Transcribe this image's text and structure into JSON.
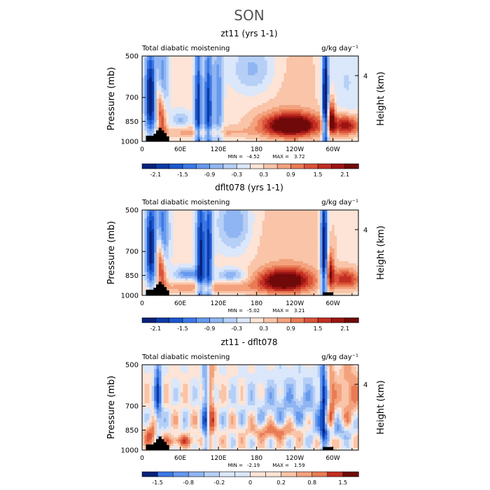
{
  "page_title": "SON",
  "chart_data": [
    {
      "type": "heatmap",
      "title": "zt11 (yrs 1-1)",
      "left_label": "Total diabatic moistening",
      "units": "g/kg day⁻¹",
      "xlabel": "",
      "ylabel": "Pressure (mb)",
      "right_ylabel": "Height (km)",
      "x_ticks": [
        "0",
        "60E",
        "120E",
        "180",
        "120W",
        "60W"
      ],
      "y_ticks": [
        "500",
        "700",
        "850",
        "1000"
      ],
      "right_ticks": [
        "4"
      ],
      "min_label": "MIN =",
      "min_value": "-4.52",
      "max_label": "MAX =",
      "max_value": "3.72",
      "colorbar": {
        "levels": [
          -2.4,
          -2.1,
          -1.8,
          -1.5,
          -1.2,
          -0.9,
          -0.6,
          -0.3,
          0,
          0.3,
          0.6,
          0.9,
          1.2,
          1.5,
          1.8,
          2.1,
          2.4
        ],
        "tick_labels": [
          "-2.1",
          "-1.5",
          "-0.9",
          "-0.3",
          "0.3",
          "0.9",
          "1.5",
          "2.1"
        ]
      }
    },
    {
      "type": "heatmap",
      "title": "dflt078 (yrs 1-1)",
      "left_label": "Total diabatic moistening",
      "units": "g/kg day⁻¹",
      "xlabel": "",
      "ylabel": "Pressure (mb)",
      "right_ylabel": "Height (km)",
      "x_ticks": [
        "0",
        "60E",
        "120E",
        "180",
        "120W",
        "60W"
      ],
      "y_ticks": [
        "500",
        "700",
        "850",
        "1000"
      ],
      "right_ticks": [
        "4"
      ],
      "min_label": "MIN =",
      "min_value": "-5.02",
      "max_label": "MAX =",
      "max_value": "3.21",
      "colorbar": {
        "levels": [
          -2.4,
          -2.1,
          -1.8,
          -1.5,
          -1.2,
          -0.9,
          -0.6,
          -0.3,
          0,
          0.3,
          0.6,
          0.9,
          1.2,
          1.5,
          1.8,
          2.1,
          2.4
        ],
        "tick_labels": [
          "-2.1",
          "-1.5",
          "-0.9",
          "-0.3",
          "0.3",
          "0.9",
          "1.5",
          "2.1"
        ]
      }
    },
    {
      "type": "heatmap",
      "title": "zt11 - dflt078",
      "left_label": "Total diabatic moistening",
      "units": "g/kg day⁻¹",
      "xlabel": "",
      "ylabel": "Pressure (mb)",
      "right_ylabel": "Height (km)",
      "x_ticks": [
        "0",
        "60E",
        "120E",
        "180",
        "120W",
        "60W"
      ],
      "y_ticks": [
        "500",
        "700",
        "850",
        "1000"
      ],
      "right_ticks": [
        "4"
      ],
      "min_label": "MIN =",
      "min_value": "-2.19",
      "max_label": "MAX =",
      "max_value": "1.59",
      "colorbar": {
        "levels": [
          -2.0,
          -1.5,
          -1.0,
          -0.8,
          -0.5,
          -0.2,
          -0.1,
          0,
          0.1,
          0.2,
          0.5,
          0.8,
          1.0,
          1.5,
          2.0
        ],
        "tick_labels": [
          "-1.5",
          "-0.8",
          "-0.2",
          "0",
          "0.2",
          "0.8",
          "1.5"
        ]
      }
    }
  ]
}
